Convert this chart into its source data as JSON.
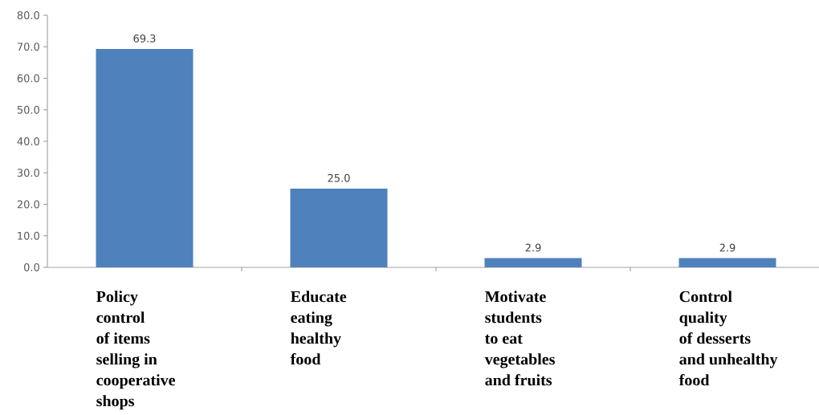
{
  "chart_data": {
    "type": "bar",
    "categories": [
      "Policy\ncontrol\nof items\nselling in\ncooperative\nshops",
      "Educate\neating\nhealthy\nfood",
      "Motivate\nstudents\nto eat\nvegetables\nand fruits",
      "Control\nquality\nof desserts\nand unhealthy\nfood"
    ],
    "values": [
      69.3,
      25.0,
      2.9,
      2.9
    ],
    "value_labels": [
      "69.3",
      "25.0",
      "2.9",
      "2.9"
    ],
    "color": "#4f81bd",
    "ylim": [
      0,
      80
    ],
    "yticks": [
      {
        "value": 0,
        "label": "0.0"
      },
      {
        "value": 10,
        "label": "10.0"
      },
      {
        "value": 20,
        "label": "20.0"
      },
      {
        "value": 30,
        "label": "30.0"
      },
      {
        "value": 40,
        "label": "40.0"
      },
      {
        "value": 50,
        "label": "50.0"
      },
      {
        "value": 60,
        "label": "60.0"
      },
      {
        "value": 70,
        "label": "70.0"
      },
      {
        "value": 80,
        "label": "80.0"
      }
    ]
  }
}
